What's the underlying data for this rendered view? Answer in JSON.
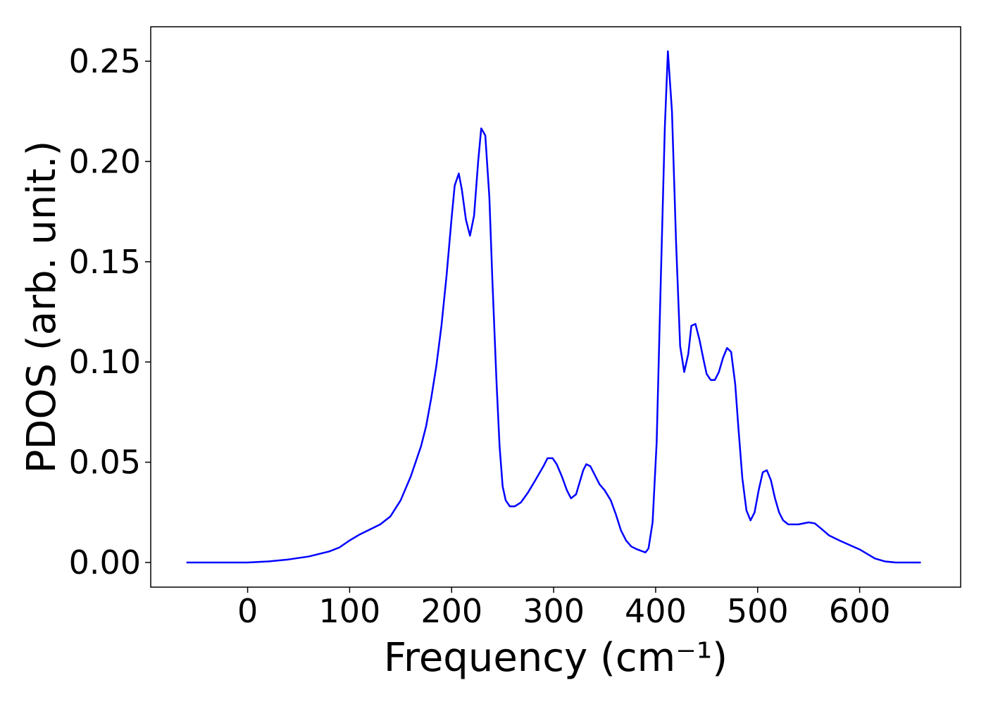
{
  "chart_data": {
    "type": "line",
    "x_label": "Frequency (cm⁻¹)",
    "y_label": "PDOS (arb. unit.)",
    "xlim": [
      -95,
      699
    ],
    "ylim": [
      -0.0123,
      0.2672
    ],
    "xticks": [
      0,
      100,
      200,
      300,
      400,
      500,
      600
    ],
    "yticks": [
      {
        "value": 0,
        "label": "0.00"
      },
      {
        "value": 0.05,
        "label": "0.05"
      },
      {
        "value": 0.1,
        "label": "0.10"
      },
      {
        "value": 0.15,
        "label": "0.15"
      },
      {
        "value": 0.2,
        "label": "0.20"
      },
      {
        "value": 0.25,
        "label": "0.25"
      }
    ],
    "series": [
      {
        "color": "#0000ff",
        "x": [
          -60,
          0,
          20,
          40,
          60,
          80,
          90,
          100,
          110,
          120,
          130,
          140,
          150,
          160,
          170,
          175,
          180,
          185,
          190,
          195,
          200,
          203,
          207,
          210,
          214,
          218,
          222,
          226,
          229,
          233,
          237,
          240,
          244,
          247,
          250,
          253,
          257,
          262,
          268,
          275,
          282,
          290,
          294,
          299,
          303,
          308,
          313,
          317,
          322,
          329,
          332,
          336,
          340,
          345,
          350,
          356,
          361,
          366,
          371,
          376,
          382,
          390,
          393,
          397,
          401,
          405,
          409,
          412,
          416,
          420,
          424,
          428,
          432,
          435,
          439,
          443,
          447,
          450,
          454,
          458,
          462,
          466,
          470,
          474,
          478,
          481,
          485,
          489,
          493,
          497,
          501,
          505,
          509,
          513,
          517,
          521,
          525,
          530,
          540,
          550,
          556,
          562,
          570,
          580,
          600,
          615,
          625,
          635,
          660
        ],
        "values": [
          0,
          0,
          0.0005,
          0.0015,
          0.003,
          0.0055,
          0.0075,
          0.011,
          0.014,
          0.0165,
          0.019,
          0.023,
          0.031,
          0.043,
          0.058,
          0.068,
          0.082,
          0.098,
          0.118,
          0.143,
          0.172,
          0.188,
          0.194,
          0.186,
          0.171,
          0.163,
          0.173,
          0.2,
          0.2165,
          0.213,
          0.182,
          0.14,
          0.09,
          0.058,
          0.038,
          0.031,
          0.028,
          0.028,
          0.03,
          0.035,
          0.041,
          0.048,
          0.052,
          0.052,
          0.049,
          0.043,
          0.036,
          0.032,
          0.034,
          0.046,
          0.049,
          0.048,
          0.044,
          0.039,
          0.036,
          0.031,
          0.024,
          0.016,
          0.011,
          0.008,
          0.0065,
          0.005,
          0.007,
          0.02,
          0.06,
          0.14,
          0.217,
          0.255,
          0.225,
          0.16,
          0.108,
          0.095,
          0.104,
          0.118,
          0.119,
          0.111,
          0.101,
          0.094,
          0.091,
          0.091,
          0.095,
          0.102,
          0.107,
          0.105,
          0.089,
          0.068,
          0.042,
          0.026,
          0.021,
          0.025,
          0.036,
          0.045,
          0.046,
          0.041,
          0.032,
          0.025,
          0.021,
          0.019,
          0.019,
          0.02,
          0.0195,
          0.017,
          0.0135,
          0.011,
          0.0065,
          0.002,
          0.0005,
          0,
          0
        ]
      }
    ]
  }
}
